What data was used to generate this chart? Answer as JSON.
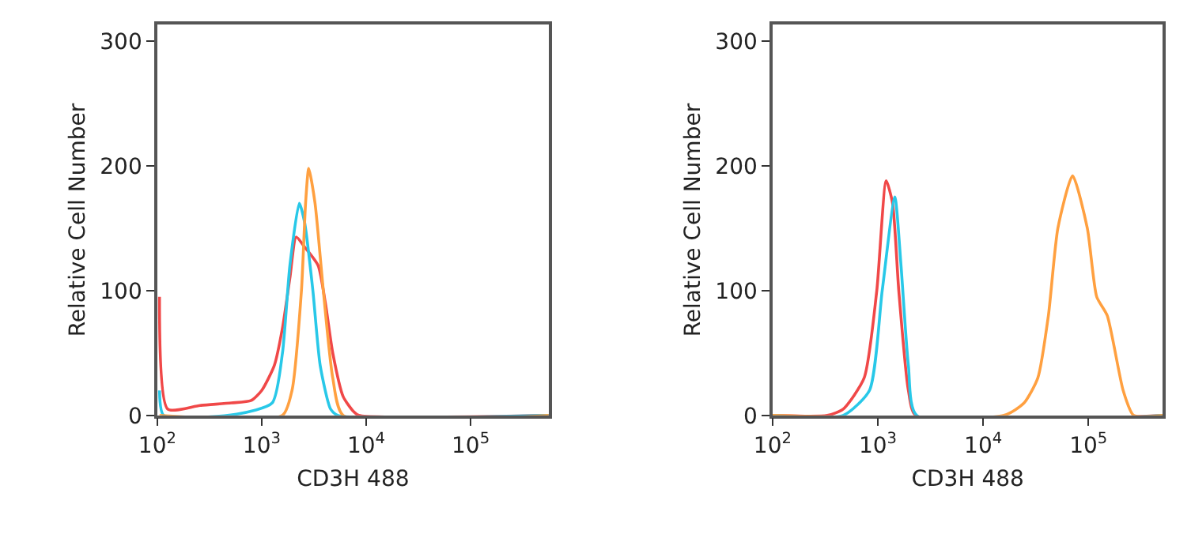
{
  "chart_data": [
    {
      "type": "line",
      "xlabel": "CD3H 488",
      "ylabel": "Relative Cell Number",
      "log": "x",
      "xlim": [
        100,
        560000
      ],
      "ylim": [
        0,
        313
      ],
      "xticks": [
        {
          "value": 100,
          "label": "10$^{2}$"
        },
        {
          "value": 1000,
          "label": "10$^{3}$"
        },
        {
          "value": 10000,
          "label": "10$^{4}$"
        },
        {
          "value": 100000,
          "label": "10$^{5}$"
        }
      ],
      "yticks": [
        0,
        100,
        200,
        300
      ],
      "series": [
        {
          "color": "#f04848",
          "x": [
            105,
            126,
            257,
            513,
            794,
            1000,
            1320,
            1580,
            1860,
            2140,
            2570,
            3470,
            4070,
            4790,
            6030,
            7590,
            8510,
            560000
          ],
          "values": [
            95,
            5,
            8,
            10,
            12,
            20,
            40,
            70,
            110,
            143,
            135,
            120,
            90,
            50,
            15,
            3,
            0,
            0
          ]
        },
        {
          "color": "#28c8e8",
          "x": [
            105,
            115,
            575,
            1260,
            1580,
            1860,
            2290,
            2570,
            3090,
            3630,
            4570,
            5370,
            560000
          ],
          "values": [
            20,
            0,
            1,
            10,
            50,
            120,
            170,
            155,
            100,
            40,
            5,
            0,
            0
          ]
        },
        {
          "color": "#ffa040",
          "x": [
            105,
            1580,
            1950,
            2400,
            2630,
            2820,
            3240,
            3890,
            4790,
            6030,
            560000
          ],
          "values": [
            0,
            0,
            20,
            100,
            170,
            198,
            170,
            100,
            30,
            0,
            0
          ]
        }
      ]
    },
    {
      "type": "line",
      "xlabel": "CD3H 488",
      "ylabel": "Relative Cell Number",
      "log": "x",
      "xlim": [
        100,
        510000
      ],
      "ylim": [
        0,
        313
      ],
      "xticks": [
        {
          "value": 100,
          "label": "10$^{2}$"
        },
        {
          "value": 1000,
          "label": "10$^{3}$"
        },
        {
          "value": 10000,
          "label": "10$^{4}$"
        },
        {
          "value": 100000,
          "label": "10$^{5}$"
        }
      ],
      "yticks": [
        0,
        100,
        200,
        300
      ],
      "series": [
        {
          "color": "#f04848",
          "x": [
            100,
            331,
            468,
            741,
            977,
            1200,
            1380,
            1580,
            1950,
            2290,
            510000
          ],
          "values": [
            0,
            0,
            5,
            30,
            100,
            188,
            170,
            100,
            20,
            0,
            0
          ]
        },
        {
          "color": "#28c8e8",
          "x": [
            100,
            468,
            832,
            1100,
            1450,
            1660,
            1950,
            2340,
            510000
          ],
          "values": [
            0,
            0,
            20,
            100,
            175,
            120,
            40,
            0,
            0
          ]
        },
        {
          "color": "#ffa040",
          "x": [
            100,
            15800,
            24500,
            33100,
            41700,
            51300,
            70800,
            97700,
            120000,
            151000,
            214000,
            269000,
            510000
          ],
          "values": [
            0,
            0,
            10,
            30,
            80,
            150,
            192,
            150,
            95,
            80,
            20,
            0,
            0
          ]
        }
      ]
    }
  ]
}
